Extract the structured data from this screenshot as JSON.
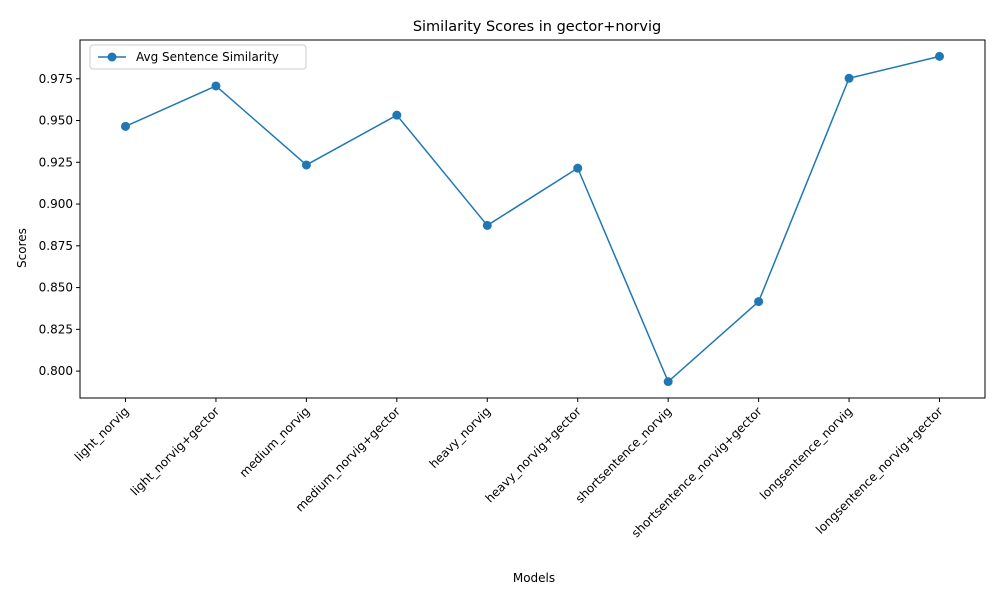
{
  "chart_data": {
    "type": "line",
    "title": "Similarity Scores in gector+norvig",
    "xlabel": "Models",
    "ylabel": "Scores",
    "categories": [
      "light_norvig",
      "light_norvig+gector",
      "medium_norvig",
      "medium_norvig+gector",
      "heavy_norvig",
      "heavy_norvig+gector",
      "shortsentence_norvig",
      "shortsentence_norvig+gector",
      "longsentence_norvig",
      "longsentence_norvig+gector"
    ],
    "series": [
      {
        "name": "Avg Sentence Similarity",
        "color": "#1f77b4",
        "marker": "circle",
        "values": [
          0.9465,
          0.9707,
          0.9234,
          0.9532,
          0.8872,
          0.9215,
          0.7937,
          0.8416,
          0.9753,
          0.9884
        ]
      }
    ],
    "ylim": [
      0.7839,
      0.9982
    ],
    "yticks": [
      0.8,
      0.825,
      0.85,
      0.875,
      0.9,
      0.925,
      0.95,
      0.975
    ],
    "ytick_labels": [
      "0.800",
      "0.825",
      "0.850",
      "0.875",
      "0.900",
      "0.925",
      "0.950",
      "0.975"
    ],
    "grid": false,
    "legend_position": "top-left"
  }
}
